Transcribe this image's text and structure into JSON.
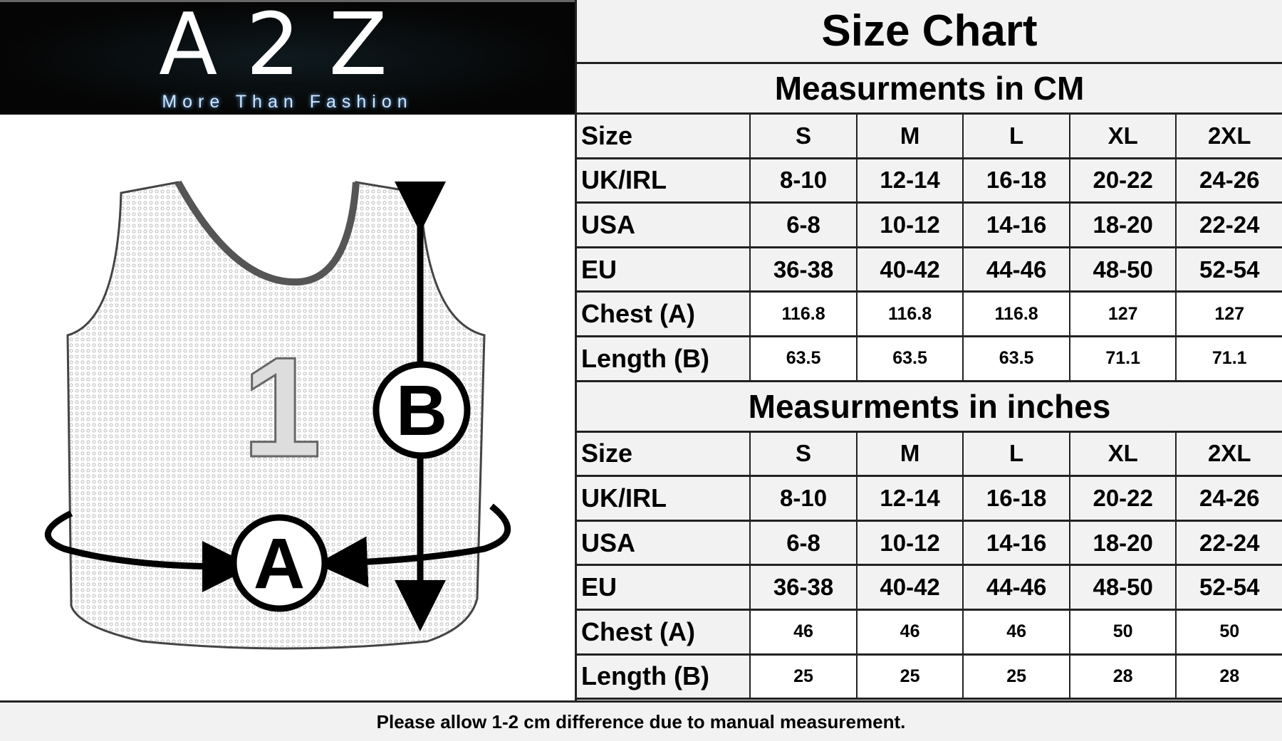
{
  "logo": {
    "text": "A2Z",
    "tagline": "More Than Fashion"
  },
  "title": "Size Chart",
  "figure": {
    "label_a": "A",
    "label_b": "B",
    "number": "1"
  },
  "tables": [
    {
      "heading": "Measurments in CM",
      "header": [
        "Size",
        "S",
        "M",
        "L",
        "XL",
        "2XL"
      ],
      "rows": [
        [
          "UK/IRL",
          "8-10",
          "12-14",
          "16-18",
          "20-22",
          "24-26"
        ],
        [
          "USA",
          "6-8",
          "10-12",
          "14-16",
          "18-20",
          "22-24"
        ],
        [
          "EU",
          "36-38",
          "40-42",
          "44-46",
          "48-50",
          "52-54"
        ],
        [
          "Chest (A)",
          "116.8",
          "116.8",
          "116.8",
          "127",
          "127"
        ],
        [
          "Length (B)",
          "63.5",
          "63.5",
          "63.5",
          "71.1",
          "71.1"
        ]
      ]
    },
    {
      "heading": "Measurments in inches",
      "header": [
        "Size",
        "S",
        "M",
        "L",
        "XL",
        "2XL"
      ],
      "rows": [
        [
          "UK/IRL",
          "8-10",
          "12-14",
          "16-18",
          "20-22",
          "24-26"
        ],
        [
          "USA",
          "6-8",
          "10-12",
          "14-16",
          "18-20",
          "22-24"
        ],
        [
          "EU",
          "36-38",
          "40-42",
          "44-46",
          "48-50",
          "52-54"
        ],
        [
          "Chest (A)",
          "46",
          "46",
          "46",
          "50",
          "50"
        ],
        [
          "Length (B)",
          "25",
          "25",
          "25",
          "28",
          "28"
        ]
      ]
    }
  ],
  "footer": "Please allow 1-2 cm difference due to manual measurement."
}
